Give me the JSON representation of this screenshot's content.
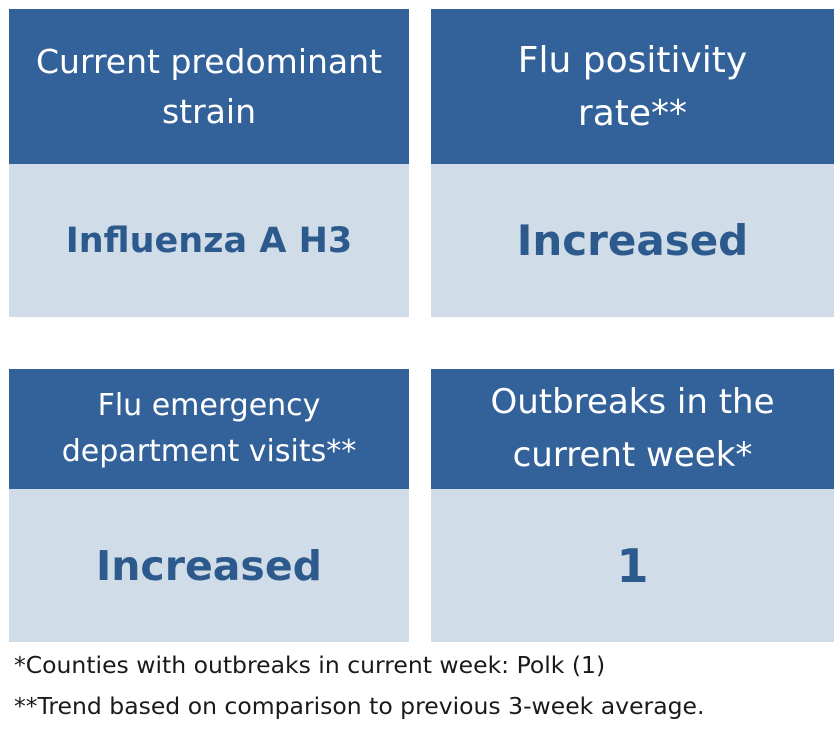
{
  "cards": [
    {
      "header": "Current predominant\nstrain",
      "value": "Influenza A H3"
    },
    {
      "header": "Flu positivity\nrate**",
      "value": "Increased"
    },
    {
      "header": "Flu emergency\ndepartment visits**",
      "value": "Increased"
    },
    {
      "header": "Outbreaks in the\ncurrent week*",
      "value": "1"
    }
  ],
  "footnotes": [
    "*Counties with outbreaks in current week: Polk (1)",
    "**Trend based on comparison to previous 3-week average."
  ],
  "colors": {
    "header_bg": "#33619a",
    "header_text": "#ffffff",
    "body_bg": "#d0dce8",
    "value_text": "#2d5a8c"
  }
}
